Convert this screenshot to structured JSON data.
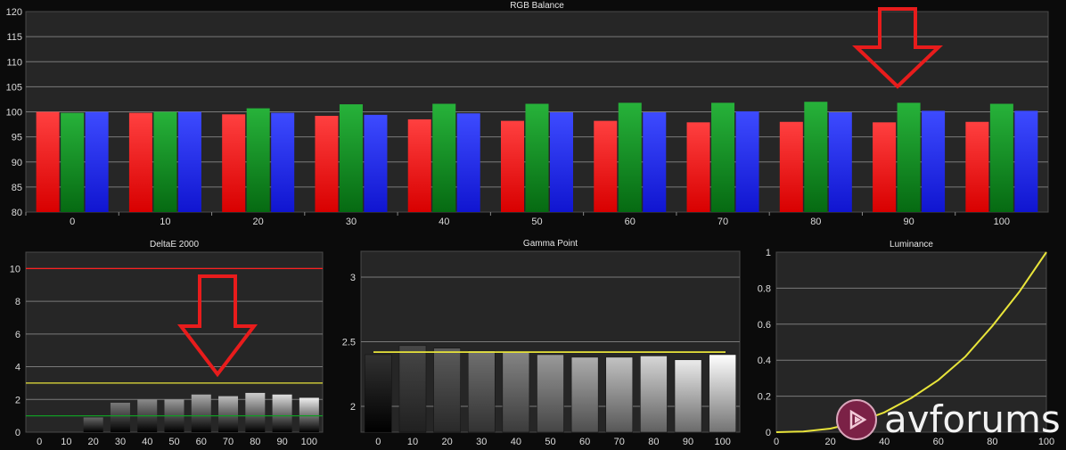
{
  "colors": {
    "background": "#0b0b0b",
    "panel": "#262626",
    "grid": "#7a7a7a",
    "red": "#ff2020",
    "green": "#119b24",
    "blue": "#1f2bff",
    "yellow": "#e8e43a",
    "annotation_arrow": "#e81c1c"
  },
  "logo": {
    "text": "avforums"
  },
  "chart_data": [
    {
      "id": "rgb",
      "type": "bar",
      "title": "RGB Balance",
      "categories": [
        "0",
        "10",
        "20",
        "30",
        "40",
        "50",
        "60",
        "70",
        "80",
        "90",
        "100"
      ],
      "series": [
        {
          "color": "red",
          "values": [
            100,
            99.8,
            99.5,
            99.2,
            98.5,
            98.2,
            98.2,
            97.9,
            98.0,
            97.9,
            98.0
          ]
        },
        {
          "color": "green",
          "values": [
            99.8,
            100,
            100.7,
            101.5,
            101.6,
            101.6,
            101.8,
            101.8,
            102.0,
            101.8,
            101.6
          ]
        },
        {
          "color": "blue",
          "values": [
            100,
            100,
            99.8,
            99.4,
            99.7,
            99.9,
            99.9,
            100.1,
            99.9,
            100.2,
            100.2
          ]
        }
      ],
      "ylim": [
        80,
        120
      ],
      "yticks": [
        "80",
        "85",
        "90",
        "95",
        "100",
        "105",
        "110",
        "115",
        "120"
      ],
      "grid": true
    },
    {
      "id": "deltae",
      "type": "bar",
      "title": "DeltaE 2000",
      "categories": [
        "0",
        "10",
        "20",
        "30",
        "40",
        "50",
        "60",
        "70",
        "80",
        "90",
        "100"
      ],
      "values": [
        0,
        0,
        0.9,
        1.8,
        2.0,
        2.0,
        2.3,
        2.2,
        2.4,
        2.3,
        2.1
      ],
      "reference_lines": [
        {
          "value": 10,
          "color": "red"
        },
        {
          "value": 3,
          "color": "yellow"
        },
        {
          "value": 1,
          "color": "green"
        }
      ],
      "ylim": [
        0,
        11
      ],
      "yticks": [
        "0",
        "2",
        "4",
        "6",
        "8",
        "10"
      ],
      "grid": true
    },
    {
      "id": "gamma",
      "type": "bar",
      "title": "Gamma Point",
      "categories": [
        "0",
        "10",
        "20",
        "30",
        "40",
        "50",
        "60",
        "70",
        "80",
        "90",
        "100"
      ],
      "values": [
        2.4,
        2.47,
        2.45,
        2.43,
        2.42,
        2.4,
        2.38,
        2.38,
        2.39,
        2.36,
        2.4
      ],
      "target": 2.42,
      "ylim": [
        1.8,
        3.2
      ],
      "yticks": [
        "2",
        "2.5",
        "3"
      ],
      "grid": true
    },
    {
      "id": "luminance",
      "type": "line",
      "title": "Luminance",
      "x": [
        0,
        10,
        20,
        30,
        40,
        50,
        60,
        70,
        80,
        90,
        100
      ],
      "y": [
        0,
        0.004,
        0.02,
        0.055,
        0.11,
        0.19,
        0.29,
        0.42,
        0.59,
        0.78,
        1.0
      ],
      "xlim": [
        0,
        100
      ],
      "ylim": [
        0,
        1
      ],
      "xticks": [
        "0",
        "20",
        "40",
        "60",
        "80",
        "100"
      ],
      "yticks": [
        "0",
        "0.2",
        "0.4",
        "0.6",
        "0.8",
        "1"
      ],
      "grid": true
    }
  ]
}
